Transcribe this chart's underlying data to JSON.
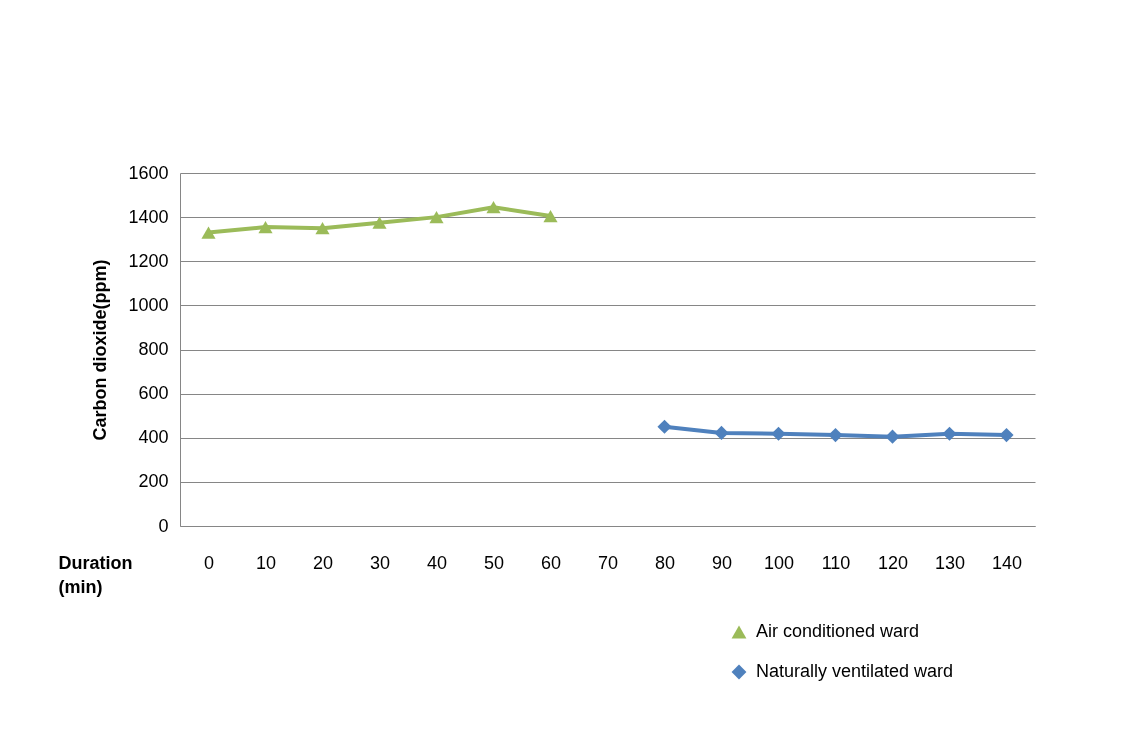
{
  "chart_data": {
    "type": "line",
    "xlabel": "Duration (min)",
    "ylabel": "Carbon dioxide(ppm)",
    "categories": [
      "0",
      "10",
      "20",
      "30",
      "40",
      "50",
      "60",
      "70",
      "80",
      "90",
      "100",
      "110",
      "120",
      "130",
      "140"
    ],
    "series": [
      {
        "name": "Air conditioned ward",
        "color": "#9bbb59",
        "marker": "triangle",
        "values": [
          1330,
          1355,
          1350,
          1375,
          1400,
          1445,
          1405,
          null,
          null,
          null,
          null,
          null,
          null,
          null,
          null
        ]
      },
      {
        "name": "Naturally ventilated ward",
        "color": "#4f81bd",
        "marker": "diamond",
        "values": [
          null,
          null,
          null,
          null,
          null,
          null,
          null,
          null,
          450,
          422,
          418,
          412,
          405,
          418,
          412
        ]
      }
    ],
    "ylim": [
      0,
      1600
    ],
    "yticks": [
      0,
      200,
      400,
      600,
      800,
      1000,
      1200,
      1400,
      1600
    ],
    "grid": "y",
    "legend": "bottom right"
  }
}
